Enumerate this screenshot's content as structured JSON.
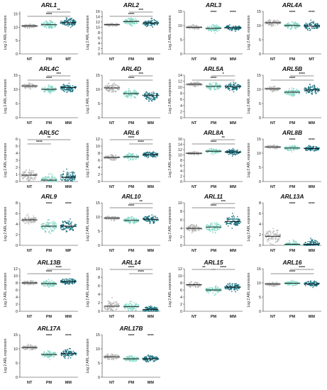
{
  "colors": {
    "NT": "#b3b3b3",
    "PM": "#7fd6c4",
    "MM": "#0f6b7a",
    "MT": "#0f6b7a",
    "MP": "#0f6b7a"
  },
  "chart_data": [
    {
      "type": "scatter",
      "title": "ARL1",
      "ylabel": "Log 2 ARL expression",
      "ylim": [
        0,
        16
      ],
      "yticks": [
        0,
        5,
        10,
        15
      ],
      "categories": [
        "NT",
        "PM",
        "MT"
      ],
      "medians": [
        10.5,
        11.0,
        11.8
      ],
      "spread": [
        0.6,
        1.3,
        1.4
      ],
      "sig_top": [
        {
          "text": "**",
          "from": 1,
          "to": 2
        }
      ],
      "sig_mid": [
        {
          "text": "****",
          "from": 0,
          "to": 2
        }
      ],
      "sig_above": []
    },
    {
      "type": "scatter",
      "title": "ARL2",
      "ylabel": "Log 2 ARL expression",
      "ylim": [
        0,
        16
      ],
      "yticks": [
        0,
        2,
        4,
        6,
        8,
        10,
        12,
        14,
        16
      ],
      "categories": [
        "NT",
        "PM",
        "MM"
      ],
      "medians": [
        11.0,
        12.2,
        11.6
      ],
      "spread": [
        0.5,
        1.1,
        1.2
      ],
      "sig_top": [
        {
          "text": "***",
          "from": 1,
          "to": 2
        }
      ],
      "sig_mid": [
        {
          "text": "****",
          "from": 0,
          "to": 2
        }
      ],
      "sig_above": []
    },
    {
      "type": "scatter",
      "title": "ARL3",
      "ylabel": "Log 2 ARL expression",
      "ylim": [
        0,
        15
      ],
      "yticks": [
        0,
        5,
        10,
        15
      ],
      "categories": [
        "NT",
        "PM",
        "MM"
      ],
      "medians": [
        9.4,
        9.0,
        9.2
      ],
      "spread": [
        0.6,
        1.0,
        0.9
      ],
      "sig_top": [],
      "sig_mid": [],
      "sig_above": [
        {
          "text": "****",
          "cat": 1
        },
        {
          "text": "****",
          "cat": 2
        }
      ]
    },
    {
      "type": "scatter",
      "title": "ARL4A",
      "ylabel": "Log 2 ARL expression",
      "ylim": [
        0,
        15
      ],
      "yticks": [
        0,
        5,
        10,
        15
      ],
      "categories": [
        "NT",
        "PM",
        "MT"
      ],
      "medians": [
        11.0,
        10.0,
        9.8
      ],
      "spread": [
        0.9,
        1.0,
        1.3
      ],
      "sig_top": [],
      "sig_mid": [],
      "sig_above": [
        {
          "text": "****",
          "cat": 1
        },
        {
          "text": "****",
          "cat": 2
        }
      ]
    },
    {
      "type": "scatter",
      "title": "ARL4C",
      "ylabel": "Log 2 ARL expression",
      "ylim": [
        0,
        15
      ],
      "yticks": [
        0,
        5,
        10,
        15
      ],
      "categories": [
        "NT",
        "PM",
        "MM"
      ],
      "medians": [
        11.2,
        10.0,
        10.6
      ],
      "spread": [
        0.8,
        1.1,
        1.3
      ],
      "sig_top": [
        {
          "text": "***",
          "from": 1,
          "to": 2
        }
      ],
      "sig_mid": [
        {
          "text": "****",
          "from": 0,
          "to": 2
        }
      ],
      "sig_above": []
    },
    {
      "type": "scatter",
      "title": "ARL4D",
      "ylabel": "Log 2 ARL expression",
      "ylim": [
        0,
        15
      ],
      "yticks": [
        0,
        5,
        10,
        15
      ],
      "categories": [
        "NT",
        "PM",
        "MM"
      ],
      "medians": [
        10.5,
        8.5,
        7.8
      ],
      "spread": [
        1.3,
        1.4,
        1.4
      ],
      "sig_top": [
        {
          "text": "***",
          "from": 1,
          "to": 2
        }
      ],
      "sig_mid": [
        {
          "text": "****",
          "from": 0,
          "to": 2
        }
      ],
      "sig_above": []
    },
    {
      "type": "scatter",
      "title": "ARL5A",
      "ylabel": "Log 2 ARL expression",
      "ylim": [
        0,
        14
      ],
      "yticks": [
        0,
        2,
        4,
        6,
        8,
        10,
        12,
        14
      ],
      "categories": [
        "NT",
        "PM",
        "MM"
      ],
      "medians": [
        11.0,
        10.3,
        10.2
      ],
      "spread": [
        0.6,
        1.0,
        1.0
      ],
      "sig_top": [
        {
          "text": "*",
          "from": 1,
          "to": 2
        }
      ],
      "sig_mid": [
        {
          "text": "****",
          "from": 0,
          "to": 2
        }
      ],
      "sig_above": []
    },
    {
      "type": "scatter",
      "title": "ARL5B",
      "ylabel": "Log 2 ARL expression",
      "ylim": [
        0,
        15
      ],
      "yticks": [
        0,
        5,
        10,
        15
      ],
      "categories": [
        "NT",
        "PM",
        "MM"
      ],
      "medians": [
        10.2,
        9.0,
        9.8
      ],
      "spread": [
        0.7,
        1.2,
        1.3
      ],
      "sig_top": [
        {
          "text": "****",
          "from": 1,
          "to": 2
        }
      ],
      "sig_mid": [
        {
          "text": "****",
          "from": 0,
          "to": 2
        }
      ],
      "sig_above": []
    },
    {
      "type": "scatter",
      "title": "ARL5C",
      "ylabel": "Log 2 ARL expression",
      "ylim": [
        0,
        6
      ],
      "yticks": [
        0,
        1,
        2,
        3,
        4,
        5,
        6
      ],
      "categories": [
        "NT",
        "PM",
        "MM"
      ],
      "medians": [
        0.9,
        0.2,
        0.6
      ],
      "spread": [
        0.9,
        0.6,
        0.9
      ],
      "sig_top": [
        {
          "text": "**",
          "from": 0,
          "to": 2
        }
      ],
      "sig_mid": [
        {
          "text": "****",
          "from": 0,
          "to": 1
        }
      ],
      "sig_above": []
    },
    {
      "type": "scatter",
      "title": "ARL6",
      "ylabel": "Log 2 ARL expression",
      "ylim": [
        0,
        12
      ],
      "yticks": [
        0,
        2,
        4,
        6,
        8,
        10,
        12
      ],
      "categories": [
        "NT",
        "PM",
        "MM"
      ],
      "medians": [
        6.8,
        7.0,
        7.6
      ],
      "spread": [
        0.6,
        0.7,
        0.8
      ],
      "sig_top": [
        {
          "text": "****",
          "from": 0,
          "to": 2
        }
      ],
      "sig_mid": [
        {
          "text": "****",
          "from": 1,
          "to": 2
        }
      ],
      "sig_above": []
    },
    {
      "type": "scatter",
      "title": "ARL8A",
      "ylabel": "Log 2 ARL expression",
      "ylim": [
        0,
        16
      ],
      "yticks": [
        0,
        2,
        4,
        6,
        8,
        10,
        12,
        14,
        16
      ],
      "categories": [
        "NT",
        "PM",
        "MM"
      ],
      "medians": [
        10.6,
        11.4,
        11.1
      ],
      "spread": [
        0.5,
        0.8,
        0.9
      ],
      "sig_top": [
        {
          "text": "**",
          "from": 1,
          "to": 2
        }
      ],
      "sig_mid": [
        {
          "text": "****",
          "from": 0,
          "to": 2
        }
      ],
      "sig_above": []
    },
    {
      "type": "scatter",
      "title": "ARL8B",
      "ylabel": "Log 2 ARL expression",
      "ylim": [
        0,
        15
      ],
      "yticks": [
        0,
        5,
        10,
        15
      ],
      "categories": [
        "NT",
        "PM",
        "MM"
      ],
      "medians": [
        12.2,
        11.8,
        11.6
      ],
      "spread": [
        0.5,
        0.8,
        0.8
      ],
      "sig_top": [],
      "sig_mid": [],
      "sig_above": [
        {
          "text": "****",
          "cat": 1
        },
        {
          "text": "****",
          "cat": 2
        }
      ]
    },
    {
      "type": "scatter",
      "title": "ARL9",
      "ylabel": "Log 2 ARL expression",
      "ylim": [
        0,
        8
      ],
      "yticks": [
        0,
        2,
        4,
        6,
        8
      ],
      "categories": [
        "NT",
        "PM",
        "MP"
      ],
      "medians": [
        4.8,
        3.6,
        3.6
      ],
      "spread": [
        0.7,
        1.1,
        1.2
      ],
      "sig_top": [],
      "sig_mid": [],
      "sig_above": [
        {
          "text": "****",
          "cat": 1
        },
        {
          "text": "****",
          "cat": 2
        }
      ]
    },
    {
      "type": "scatter",
      "title": "ARL10",
      "ylabel": "Log 2 ARL expression",
      "ylim": [
        0,
        15
      ],
      "yticks": [
        0,
        5,
        10,
        15
      ],
      "categories": [
        "NT",
        "PM",
        "MM"
      ],
      "medians": [
        9.6,
        8.8,
        9.2
      ],
      "spread": [
        0.6,
        1.0,
        1.2
      ],
      "sig_top": [
        {
          "text": "**",
          "from": 1,
          "to": 2
        }
      ],
      "sig_mid": [
        {
          "text": "****",
          "from": 0,
          "to": 2
        }
      ],
      "sig_above": []
    },
    {
      "type": "scatter",
      "title": "ARL11",
      "ylabel": "Log 2 ARL expression",
      "ylim": [
        0,
        10
      ],
      "yticks": [
        0,
        2,
        4,
        6,
        8,
        10
      ],
      "categories": [
        "NT",
        "PM",
        "MM"
      ],
      "medians": [
        4.0,
        4.3,
        5.6
      ],
      "spread": [
        0.7,
        0.9,
        1.2
      ],
      "sig_top": [
        {
          "text": "***",
          "from": 1,
          "to": 2
        }
      ],
      "sig_mid": [
        {
          "text": "****",
          "from": 0,
          "to": 2
        }
      ],
      "sig_above": []
    },
    {
      "type": "scatter",
      "title": "ARL13A",
      "ylabel": "Log 2 ARL expression",
      "ylim": [
        0,
        8
      ],
      "yticks": [
        0,
        2,
        4,
        6,
        8
      ],
      "categories": [
        "NT",
        "PM",
        "MM"
      ],
      "medians": [
        1.7,
        0.2,
        0.2
      ],
      "spread": [
        1.2,
        0.6,
        0.8
      ],
      "sig_top": [],
      "sig_mid": [],
      "sig_above": [
        {
          "text": "****",
          "cat": 1
        },
        {
          "text": "****",
          "cat": 2
        }
      ]
    },
    {
      "type": "scatter",
      "title": "ARL13B",
      "ylabel": "Log 2 ARL expression",
      "ylim": [
        0,
        12
      ],
      "yticks": [
        0,
        2,
        4,
        6,
        8,
        10,
        12
      ],
      "categories": [
        "NT",
        "PM",
        "MM"
      ],
      "medians": [
        8.0,
        7.8,
        8.4
      ],
      "spread": [
        0.5,
        0.8,
        0.8
      ],
      "sig_top": [
        {
          "text": "****",
          "from": 1,
          "to": 2
        }
      ],
      "sig_mid": [
        {
          "text": "****",
          "from": 0,
          "to": 2
        }
      ],
      "sig_above": []
    },
    {
      "type": "scatter",
      "title": "ARL14",
      "ylabel": "Log 2 ARL expression",
      "ylim": [
        0,
        10
      ],
      "yticks": [
        0,
        2,
        4,
        6,
        8,
        10
      ],
      "categories": [
        "NT",
        "PM",
        "MM"
      ],
      "medians": [
        1.2,
        1.1,
        0.4
      ],
      "spread": [
        1.2,
        1.0,
        0.7
      ],
      "sig_top": [
        {
          "text": "****",
          "from": 0,
          "to": 2
        }
      ],
      "sig_mid": [
        {
          "text": "****",
          "from": 1,
          "to": 2
        }
      ],
      "sig_above": []
    },
    {
      "type": "scatter",
      "title": "ARL15",
      "ylabel": "Log 2 ARL expression",
      "ylim": [
        0,
        12
      ],
      "yticks": [
        0,
        2,
        4,
        6,
        8,
        10,
        12
      ],
      "categories": [
        "NT",
        "PM",
        "MM"
      ],
      "medians": [
        7.5,
        6.0,
        6.8
      ],
      "spread": [
        0.7,
        1.0,
        1.1
      ],
      "sig_top": [
        {
          "text": "**",
          "from": 0,
          "to": 1
        },
        {
          "text": "****",
          "from": 1,
          "to": 2
        }
      ],
      "sig_mid": [],
      "sig_above": []
    },
    {
      "type": "scatter",
      "title": "ARL16",
      "ylabel": "Log 2 ARL expression",
      "ylim": [
        0,
        15
      ],
      "yticks": [
        0,
        5,
        10,
        15
      ],
      "categories": [
        "NT",
        "PM",
        "MM"
      ],
      "medians": [
        9.6,
        9.9,
        9.6
      ],
      "spread": [
        0.6,
        0.7,
        0.9
      ],
      "sig_top": [
        {
          "text": "****",
          "from": 1,
          "to": 2
        }
      ],
      "sig_mid": [
        {
          "text": "****",
          "from": 0,
          "to": 2
        }
      ],
      "sig_above": []
    },
    {
      "type": "scatter",
      "title": "ARL17A",
      "ylabel": "Log 2 ARL expression",
      "ylim": [
        0,
        15
      ],
      "yticks": [
        0,
        5,
        10,
        15
      ],
      "categories": [
        "NT",
        "PM",
        "MM"
      ],
      "medians": [
        10.5,
        8.0,
        8.3
      ],
      "spread": [
        0.8,
        1.1,
        1.3
      ],
      "sig_top": [],
      "sig_mid": [],
      "sig_above": [
        {
          "text": "****",
          "cat": 1
        },
        {
          "text": "****",
          "cat": 2
        }
      ]
    },
    {
      "type": "scatter",
      "title": "ARL17B",
      "ylabel": "Log 2 ARL expression",
      "ylim": [
        0,
        15
      ],
      "yticks": [
        0,
        5,
        10,
        15
      ],
      "categories": [
        "NT",
        "PM",
        "MM"
      ],
      "medians": [
        7.2,
        6.5,
        6.5
      ],
      "spread": [
        0.9,
        0.9,
        1.0
      ],
      "sig_top": [],
      "sig_mid": [],
      "sig_above": [
        {
          "text": "****",
          "cat": 1
        },
        {
          "text": "****",
          "cat": 2
        }
      ]
    }
  ]
}
